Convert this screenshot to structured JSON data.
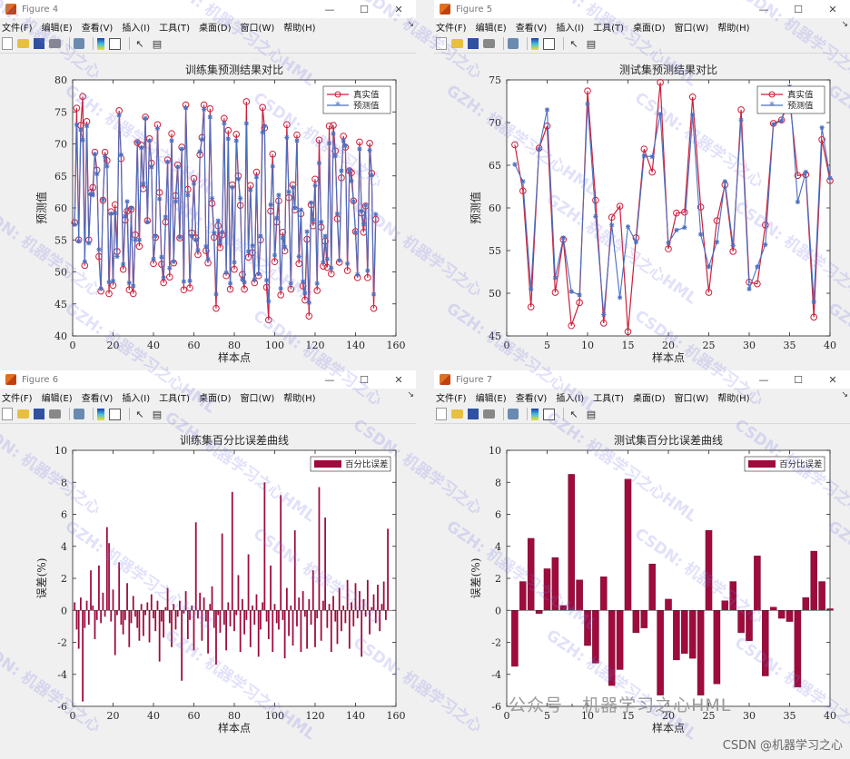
{
  "windows": [
    {
      "id": "fig4",
      "title": "Figure 4",
      "menus": [
        "文件(F)",
        "编辑(E)",
        "查看(V)",
        "插入(I)",
        "工具(T)",
        "桌面(D)",
        "窗口(W)",
        "帮助(H)"
      ],
      "chart_title": "训练集预测结果对比"
    },
    {
      "id": "fig5",
      "title": "Figure 5",
      "menus": [
        "文件(F)",
        "编辑(E)",
        "查看(V)",
        "插入(I)",
        "工具(T)",
        "桌面(D)",
        "窗口(W)",
        "帮助(H)"
      ],
      "chart_title": "测试集预测结果对比"
    },
    {
      "id": "fig6",
      "title": "Figure 6",
      "menus": [
        "文件(F)",
        "编辑(E)",
        "查看(V)",
        "插入(I)",
        "工具(T)",
        "桌面(D)",
        "窗口(W)",
        "帮助(H)"
      ],
      "chart_title": "训练集百分比误差曲线"
    },
    {
      "id": "fig7",
      "title": "Figure 7",
      "menus": [
        "文件(F)",
        "编辑(E)",
        "查看(V)",
        "插入(I)",
        "工具(T)",
        "桌面(D)",
        "窗口(W)",
        "帮助(H)"
      ],
      "chart_title": "测试集百分比误差曲线"
    }
  ],
  "chart_data": [
    {
      "type": "line",
      "title": "训练集预测结果对比",
      "xlabel": "样本点",
      "ylabel": "预测值",
      "xlim": [
        0,
        160
      ],
      "ylim": [
        40,
        80
      ],
      "xticks": [
        0,
        20,
        40,
        60,
        80,
        100,
        120,
        140,
        160
      ],
      "yticks": [
        40,
        45,
        50,
        55,
        60,
        65,
        70,
        75,
        80
      ],
      "legend": [
        "真实值",
        "预测值"
      ],
      "legend_position": "top-right",
      "series": [
        {
          "name": "真实值",
          "color": "#cc1f3a",
          "marker": "circle",
          "values": [
            57.7,
            75.6,
            55,
            72.9,
            77.4,
            51,
            73.5,
            55,
            62.4,
            63.2,
            68.7,
            65.9,
            52.4,
            47,
            61.2,
            68.7,
            67.4,
            46.6,
            59.4,
            47.9,
            60.5,
            53.2,
            75.2,
            67.7,
            50.4,
            58.1,
            59.5,
            47.2,
            59.8,
            46.6,
            55.8,
            70.2,
            54,
            69.8,
            63,
            74.2,
            58,
            70.8,
            67,
            51.3,
            55.4,
            73,
            62.4,
            51.2,
            48.3,
            57.8,
            67.5,
            49.2,
            71.6,
            51.4,
            61.9,
            66.7,
            55.3,
            69.5,
            47.2,
            76.1,
            62.9,
            47.5,
            56.1,
            64.6,
            55.3,
            52.7,
            68.3,
            71,
            76.1,
            53.3,
            51.4,
            75.5,
            60.7,
            55.4,
            44.3,
            57.2,
            53.8,
            55.8,
            74,
            49.4,
            72.1,
            47.3,
            63.6,
            50.4,
            71.5,
            65,
            60.4,
            49.6,
            47.3,
            76.6,
            52.3,
            63.5,
            53,
            48.3,
            65.6,
            49.4,
            55,
            75.7,
            72.5,
            47.6,
            42.5,
            59.5,
            68.4,
            51.6,
            57.8,
            61.1,
            46.4,
            56.2,
            53.3,
            73,
            61.6,
            47.3,
            63.6,
            59.7,
            71.4,
            51.3,
            59.1,
            47.8,
            45.6,
            55.1,
            43.1,
            60.5,
            57.2,
            64.5,
            47.1,
            70.6,
            57,
            50.9,
            54.8,
            50.7,
            72.8,
            49.7,
            72.9,
            68.9,
            58.3,
            51.5,
            64.7,
            71.2,
            69.5,
            50.2,
            65.8,
            65.5,
            61.1,
            56.3,
            49.1,
            70.3,
            59.2,
            56.2,
            60.3,
            49.1,
            70.1,
            65.4,
            44.3,
            58.2
          ]
        },
        {
          "name": "预测值",
          "color": "#4a6fc0",
          "marker": "asterisk",
          "values": [
            57.4,
            73,
            54.8,
            72.2,
            70.6,
            51.6,
            72.8,
            54.5,
            62.2,
            62,
            68.4,
            65.3,
            53.5,
            47.4,
            61.3,
            68,
            66.5,
            48.4,
            59.1,
            48.6,
            59.2,
            52.4,
            74.5,
            68.3,
            51.2,
            58.7,
            61,
            48.3,
            60,
            47.8,
            55,
            70.3,
            55,
            69.4,
            63.8,
            74,
            57.8,
            70.5,
            66.4,
            52,
            55.6,
            72.4,
            61.4,
            52.3,
            49.1,
            58.6,
            67.2,
            50.6,
            70.5,
            51.6,
            61,
            66.4,
            55.4,
            69.2,
            48.5,
            75.6,
            62,
            48.6,
            55.6,
            63.8,
            55,
            53.4,
            68.8,
            70.7,
            75.4,
            54,
            52,
            74.2,
            61.5,
            56.1,
            46.5,
            58,
            54.6,
            56.2,
            73.2,
            49.9,
            70.8,
            48.2,
            63.2,
            51.5,
            70.5,
            64.5,
            61.5,
            48.8,
            48.4,
            73.2,
            53.2,
            62.8,
            54.1,
            48.8,
            64.8,
            49.7,
            55.6,
            71.8,
            72.8,
            48.7,
            45.4,
            60.5,
            66.5,
            52.6,
            58.4,
            62,
            47.4,
            55.3,
            53.9,
            71,
            62.5,
            48.2,
            63.2,
            60,
            70.5,
            52.4,
            59.7,
            48.5,
            46.7,
            56.3,
            45.2,
            60.8,
            58.1,
            63.5,
            48.2,
            67,
            57.8,
            51.5,
            55.6,
            52,
            70.1,
            50.6,
            71.6,
            68.1,
            59.1,
            51.8,
            65.8,
            70.5,
            69.7,
            51.3,
            65.9,
            64.2,
            61,
            56.2,
            49.6,
            69.2,
            59.5,
            57.5,
            60.4,
            50.2,
            69,
            65.1,
            46.5,
            59
          ]
        }
      ]
    },
    {
      "type": "line",
      "title": "测试集预测结果对比",
      "xlabel": "样本点",
      "ylabel": "预测值",
      "xlim": [
        0,
        40
      ],
      "ylim": [
        45,
        75
      ],
      "xticks": [
        0,
        5,
        10,
        15,
        20,
        25,
        30,
        35,
        40
      ],
      "yticks": [
        45,
        50,
        55,
        60,
        65,
        70,
        75
      ],
      "legend": [
        "真实值",
        "预测值"
      ],
      "legend_position": "top-right",
      "series": [
        {
          "name": "真实值",
          "color": "#cc1f3a",
          "marker": "circle",
          "values": [
            67.4,
            62,
            48.4,
            67,
            69.6,
            50.1,
            56.3,
            46.2,
            48.9,
            73.7,
            60.9,
            46.5,
            58.9,
            60.2,
            45.5,
            56.5,
            66.9,
            64.2,
            74.7,
            55.2,
            59.4,
            59.5,
            73,
            60.1,
            50.1,
            58.5,
            62.7,
            54.9,
            71.5,
            51.3,
            51.1,
            58,
            69.9,
            70.3,
            72.8,
            63.8,
            63.9,
            47.2,
            68,
            63.2
          ]
        },
        {
          "name": "预测值",
          "color": "#4a6fc0",
          "marker": "asterisk",
          "values": [
            65.1,
            63.1,
            50.5,
            66.9,
            71.5,
            51.8,
            56.5,
            50.2,
            49.8,
            72.2,
            59,
            47.5,
            58,
            49.5,
            57.8,
            56,
            66.1,
            66,
            71,
            55.9,
            57.4,
            57.7,
            70.9,
            56.9,
            53.1,
            56,
            63.1,
            55.6,
            70.3,
            50.5,
            53.1,
            55.7,
            69.8,
            70.2,
            74.2,
            60.7,
            64.2,
            49,
            69.4,
            63.5
          ]
        }
      ]
    },
    {
      "type": "bar",
      "title": "训练集百分比误差曲线",
      "xlabel": "样本点",
      "ylabel": "误差(%)",
      "xlim": [
        0,
        160
      ],
      "ylim": [
        -6,
        10
      ],
      "xticks": [
        0,
        20,
        40,
        60,
        80,
        100,
        120,
        140,
        160
      ],
      "yticks": [
        -6,
        -4,
        -2,
        0,
        2,
        4,
        6,
        8,
        10
      ],
      "legend": [
        "百分比误差"
      ],
      "legend_position": "top-right",
      "series": [
        {
          "name": "百分比误差",
          "color": "#9e0b3c",
          "values": [
            0.5,
            -1.2,
            -2.4,
            0.8,
            -5.7,
            -1.1,
            0.6,
            -0.9,
            2.5,
            0.3,
            -1.8,
            -0.6,
            2.8,
            -0.8,
            1.1,
            -0.4,
            5.2,
            4.2,
            -0.7,
            1.3,
            -2.8,
            -0.3,
            3.0,
            -0.9,
            -1.5,
            -0.6,
            1.7,
            -2.3,
            -0.8,
            0.9,
            -0.4,
            -1.1,
            -1.9,
            0.4,
            -1.6,
            -0.3,
            0.5,
            -2.0,
            1.0,
            -0.5,
            -1.3,
            0.6,
            -3.2,
            -0.7,
            -1.7,
            0.2,
            1.4,
            -0.8,
            -2.3,
            0.4,
            -1.2,
            -0.4,
            0.6,
            -4.4,
            -0.2,
            1.2,
            -1.8,
            -0.6,
            0.3,
            -2.5,
            5.5,
            -0.5,
            1.1,
            -1.9,
            0.8,
            -0.7,
            -2.7,
            0.4,
            1.5,
            -1.1,
            -3.4,
            -0.3,
            -1.4,
            4.8,
            -0.9,
            -2.5,
            0.5,
            -1.0,
            7.4,
            -1.3,
            -0.3,
            2.2,
            -2.6,
            0.7,
            -1.5,
            -0.6,
            3.5,
            -2.3,
            0.3,
            -0.9,
            1.0,
            -2.9,
            -1.2,
            0.5,
            8.0,
            -0.7,
            -1.8,
            2.8,
            -2.6,
            0.4,
            -0.8,
            -1.2,
            7.2,
            -0.6,
            -3.0,
            1.4,
            -1.6,
            0.3,
            -2.2,
            5.0,
            -1.0,
            0.8,
            -2.6,
            1.2,
            -0.4,
            -2.4,
            0.7,
            -0.9,
            2.5,
            -2.3,
            -0.5,
            7.7,
            -1.9,
            0.6,
            5.8,
            -1.1,
            0.4,
            -2.6,
            0.9,
            -0.7,
            -2.1,
            1.4,
            -1.3,
            0.3,
            -0.8,
            1.9,
            -2.4,
            0.5,
            -1.0,
            1.7,
            -0.5,
            1.2,
            -2.9,
            0.7,
            -0.4,
            1.9,
            -1.5,
            0.2,
            1.0,
            -0.8,
            1.6,
            -1.3,
            0.4,
            1.8,
            -0.6,
            5.1
          ]
        }
      ]
    },
    {
      "type": "bar",
      "title": "测试集百分比误差曲线",
      "xlabel": "样本点",
      "ylabel": "误差(%)",
      "xlim": [
        0,
        40
      ],
      "ylim": [
        -6,
        10
      ],
      "xticks": [
        0,
        5,
        10,
        15,
        20,
        25,
        30,
        35,
        40
      ],
      "yticks": [
        -6,
        -4,
        -2,
        0,
        2,
        4,
        6,
        8,
        10
      ],
      "legend": [
        "百分比误差"
      ],
      "legend_position": "top-right",
      "series": [
        {
          "name": "百分比误差",
          "color": "#9e0b3c",
          "values": [
            -3.5,
            1.8,
            4.5,
            -0.2,
            2.6,
            3.3,
            0.3,
            8.5,
            1.9,
            -2.2,
            -3.3,
            2.1,
            -4.7,
            -3.7,
            8.2,
            -1.4,
            -1.1,
            2.9,
            -5.3,
            0.7,
            -3.1,
            -2.7,
            -3.0,
            -5.3,
            5.0,
            -4.6,
            0.6,
            1.8,
            -1.4,
            -1.9,
            3.4,
            -4.1,
            0.2,
            -0.5,
            -0.7,
            -4.8,
            0.8,
            3.7,
            1.8,
            0.1
          ]
        }
      ]
    }
  ],
  "watermark": {
    "lines": [
      "CSDN: 机器学习之心",
      "GZH: 机器学习之心HML"
    ]
  },
  "footer": {
    "wechat": "公众号 · 机器学习之心HML",
    "csdn": "CSDN @机器学习之心"
  }
}
